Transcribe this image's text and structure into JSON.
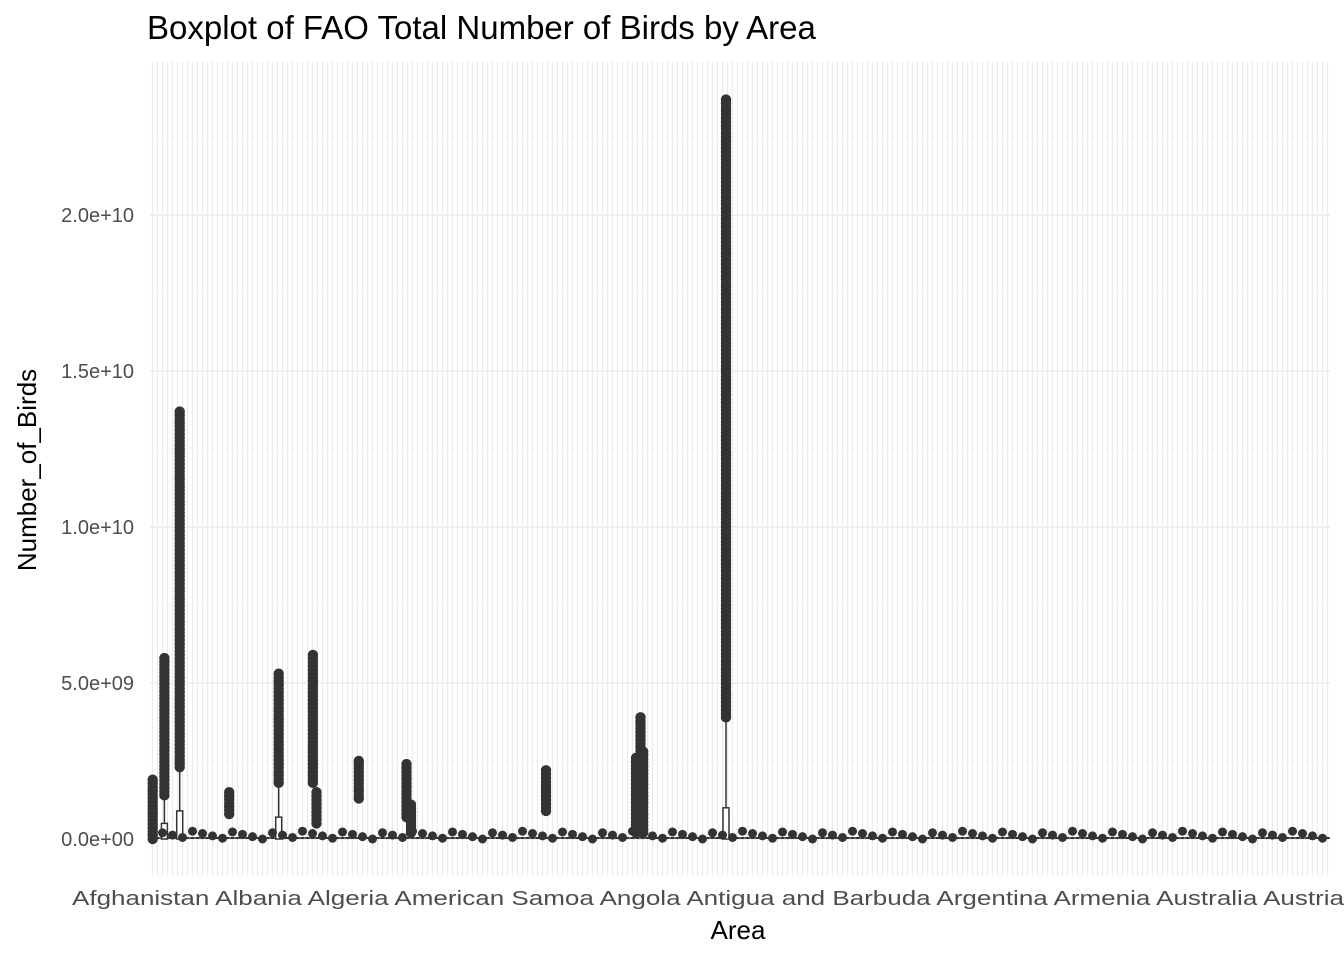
{
  "chart_data": {
    "type": "boxplot",
    "title": "Boxplot of FAO Total Number of Birds by Area",
    "xlabel": "Area",
    "ylabel": "Number_of_Birds",
    "ylim": [
      -1200000000,
      24500000000
    ],
    "y_ticks": [
      {
        "value": 0,
        "label": "0.0e+00"
      },
      {
        "value": 5000000000,
        "label": "5.0e+09"
      },
      {
        "value": 10000000000,
        "label": "1.0e+10"
      },
      {
        "value": 15000000000,
        "label": "1.5e+10"
      },
      {
        "value": 20000000000,
        "label": "2.0e+10"
      }
    ],
    "grid": true,
    "area_count": 236,
    "x_tick_labels_overlapping": "Afghanistan Albania Algeria American Samoa Angola Antigua and Barbuda Argentina Armenia Australia Austria",
    "notable_outlier_groups": [
      {
        "category_index": 3,
        "min": 0,
        "max": 1900000000
      },
      {
        "category_index": 16,
        "min": 1400000000,
        "max": 5800000000,
        "q3": 500000000
      },
      {
        "category_index": 33,
        "min": 2300000000,
        "max": 13700000000,
        "q3": 900000000
      },
      {
        "category_index": 88,
        "min": 800000000,
        "max": 1500000000
      },
      {
        "category_index": 143,
        "min": 1800000000,
        "max": 5300000000,
        "q3": 700000000
      },
      {
        "category_index": 181,
        "min": 1800000000,
        "max": 5900000000
      },
      {
        "category_index": 185,
        "min": 500000000,
        "max": 1500000000
      },
      {
        "category_index": 232,
        "min": 1300000000,
        "max": 2500000000
      },
      {
        "category_index": 285,
        "min": 700000000,
        "max": 2400000000
      },
      {
        "category_index": 290,
        "min": 200000000,
        "max": 1100000000
      },
      {
        "category_index": 440,
        "min": 900000000,
        "max": 2200000000
      },
      {
        "category_index": 540,
        "min": 200000000,
        "max": 2600000000
      },
      {
        "category_index": 545,
        "min": 300000000,
        "max": 3900000000
      },
      {
        "category_index": 548,
        "min": 200000000,
        "max": 2800000000
      },
      {
        "category_index": 640,
        "min": 3900000000,
        "max": 23700000000,
        "q3": 1000000000
      }
    ]
  }
}
